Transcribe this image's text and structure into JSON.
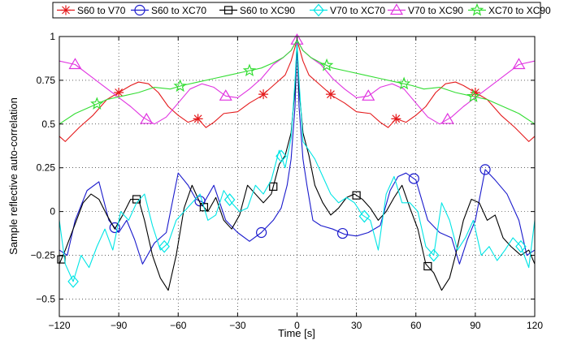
{
  "chart_data": {
    "type": "line",
    "title": "",
    "xlabel": "Time [s]",
    "ylabel": "Sample reflective auto-correlation",
    "xlim": [
      -120,
      120
    ],
    "ylim": [
      -0.6,
      1.0
    ],
    "grid": true,
    "legend_position": "top",
    "xticks": [
      -120,
      -90,
      -60,
      -30,
      0,
      30,
      60,
      90,
      120
    ],
    "xtick_labels": [
      "−120",
      "−90",
      "−60",
      "−30",
      "0",
      "30",
      "60",
      "90",
      "120"
    ],
    "yticks": [
      -0.5,
      -0.25,
      0,
      0.25,
      0.5,
      0.75,
      1
    ],
    "ytick_labels": [
      "−0.5",
      "−0.25",
      "0",
      "0.25",
      "0.5",
      "0.75",
      "1"
    ],
    "series": [
      {
        "name": "S60 to V70",
        "color": "#e41a1c",
        "marker": "asterisk",
        "x": [
          -120,
          -117,
          -110,
          -103,
          -96,
          -90,
          -84,
          -80,
          -75,
          -70,
          -65,
          -60,
          -55,
          -50,
          -46,
          -42,
          -37,
          -30,
          -24,
          -18,
          -12,
          -6,
          -3,
          -1,
          0,
          1,
          3,
          6,
          12,
          18,
          24,
          30,
          37,
          42,
          46,
          50,
          55,
          60,
          65,
          70,
          75,
          80,
          84,
          90,
          96,
          103,
          110,
          117,
          120
        ],
        "y": [
          0.43,
          0.4,
          0.48,
          0.55,
          0.64,
          0.68,
          0.72,
          0.74,
          0.73,
          0.68,
          0.6,
          0.55,
          0.51,
          0.53,
          0.48,
          0.51,
          0.56,
          0.57,
          0.62,
          0.66,
          0.72,
          0.78,
          0.86,
          0.94,
          0.98,
          0.94,
          0.86,
          0.78,
          0.72,
          0.66,
          0.62,
          0.57,
          0.56,
          0.51,
          0.48,
          0.53,
          0.51,
          0.55,
          0.6,
          0.68,
          0.73,
          0.74,
          0.72,
          0.68,
          0.64,
          0.55,
          0.48,
          0.4,
          0.43
        ],
        "markers_x": [
          -90,
          -50,
          -17,
          17,
          50,
          90
        ]
      },
      {
        "name": "S60 to XC70",
        "color": "#1a1acc",
        "marker": "circle",
        "x": [
          -120,
          -116,
          -112,
          -106,
          -100,
          -95,
          -90,
          -86,
          -82,
          -78,
          -72,
          -66,
          -60,
          -55,
          -51,
          -47,
          -42,
          -36,
          -30,
          -24,
          -18,
          -12,
          -8,
          -5,
          -3,
          -1,
          0,
          1,
          3,
          5,
          8,
          12,
          18,
          24,
          30,
          36,
          42,
          47,
          51,
          55,
          60,
          66,
          72,
          78,
          82,
          86,
          90,
          95,
          100,
          106,
          112,
          116,
          120
        ],
        "y": [
          -0.22,
          -0.25,
          -0.05,
          0.12,
          0.17,
          -0.05,
          -0.12,
          -0.05,
          -0.16,
          -0.3,
          -0.18,
          -0.12,
          0.22,
          0.15,
          0.07,
          0.05,
          0.15,
          -0.05,
          -0.12,
          -0.17,
          -0.12,
          -0.05,
          0.02,
          0.15,
          0.3,
          0.6,
          0.97,
          0.6,
          0.3,
          0.15,
          -0.05,
          -0.08,
          -0.1,
          -0.13,
          -0.14,
          -0.12,
          -0.08,
          0.12,
          0.2,
          0.22,
          0.18,
          -0.05,
          -0.12,
          -0.15,
          -0.3,
          -0.16,
          -0.05,
          0.24,
          0.18,
          0.1,
          -0.05,
          -0.25,
          -0.22
        ],
        "markers_x": [
          -92,
          -49,
          -18,
          23,
          59,
          95
        ]
      },
      {
        "name": "S60 to XC90",
        "color": "#000000",
        "marker": "square",
        "x": [
          -120,
          -117,
          -113,
          -108,
          -104,
          -100,
          -96,
          -92,
          -88,
          -84,
          -80,
          -77,
          -73,
          -69,
          -65,
          -61,
          -57,
          -53,
          -49,
          -45,
          -41,
          -37,
          -33,
          -29,
          -25,
          -21,
          -17,
          -13,
          -9,
          -6,
          -3,
          -1,
          0,
          1,
          3,
          6,
          9,
          13,
          17,
          21,
          25,
          29,
          33,
          37,
          41,
          45,
          49,
          53,
          57,
          61,
          65,
          69,
          73,
          77,
          80,
          84,
          88,
          92,
          96,
          100,
          104,
          108,
          113,
          117,
          120
        ],
        "y": [
          -0.3,
          -0.22,
          -0.1,
          0.05,
          0.1,
          0.07,
          -0.02,
          -0.1,
          -0.02,
          0.07,
          0.07,
          -0.05,
          -0.25,
          -0.38,
          -0.45,
          -0.25,
          0.02,
          0.15,
          0.05,
          0.0,
          0.08,
          -0.05,
          -0.1,
          -0.02,
          0.15,
          0.1,
          0.05,
          0.1,
          0.27,
          0.32,
          0.45,
          0.7,
          0.97,
          0.7,
          0.45,
          0.32,
          0.15,
          0.05,
          -0.02,
          0.02,
          0.08,
          0.1,
          0.07,
          0.02,
          -0.05,
          0.0,
          0.08,
          0.15,
          0.02,
          -0.1,
          -0.3,
          -0.35,
          -0.45,
          -0.38,
          -0.25,
          -0.05,
          0.07,
          0.05,
          -0.05,
          -0.02,
          -0.15,
          -0.2,
          -0.25,
          -0.22,
          -0.3
        ],
        "markers_x": [
          -119,
          -81,
          -47,
          -12,
          30,
          66
        ]
      },
      {
        "name": "V70 to XC70",
        "color": "#00e5e5",
        "marker": "diamond",
        "x": [
          -120,
          -117,
          -113,
          -109,
          -105,
          -101,
          -97,
          -93,
          -89,
          -85,
          -81,
          -77,
          -73,
          -69,
          -65,
          -61,
          -57,
          -53,
          -49,
          -45,
          -41,
          -37,
          -33,
          -29,
          -25,
          -21,
          -17,
          -13,
          -9,
          -6,
          -3,
          -1,
          0,
          1,
          3,
          6,
          9,
          13,
          17,
          21,
          25,
          29,
          33,
          37,
          41,
          45,
          49,
          53,
          57,
          61,
          65,
          69,
          73,
          77,
          81,
          85,
          89,
          93,
          97,
          101,
          105,
          109,
          113,
          117,
          120
        ],
        "y": [
          -0.05,
          -0.3,
          -0.4,
          -0.25,
          -0.32,
          -0.2,
          -0.1,
          -0.22,
          0.0,
          -0.05,
          0.05,
          0.1,
          -0.08,
          -0.22,
          -0.18,
          -0.05,
          0.0,
          0.05,
          0.1,
          -0.05,
          -0.02,
          0.12,
          0.05,
          0.0,
          0.02,
          0.15,
          0.1,
          0.18,
          0.35,
          0.25,
          0.42,
          0.75,
          0.97,
          0.75,
          0.4,
          0.35,
          0.3,
          0.2,
          0.1,
          0.05,
          0.08,
          0.05,
          -0.02,
          -0.05,
          -0.22,
          0.1,
          0.2,
          0.05,
          0.05,
          0.0,
          -0.2,
          -0.25,
          0.05,
          -0.05,
          -0.22,
          -0.15,
          -0.05,
          -0.25,
          -0.2,
          -0.28,
          -0.22,
          -0.15,
          -0.2,
          -0.32,
          -0.05
        ],
        "markers_x": [
          -113,
          -67,
          -34,
          -8,
          34,
          69,
          113
        ]
      },
      {
        "name": "V70 to XC90",
        "color": "#e033e0",
        "marker": "triangle",
        "x": [
          -120,
          -112,
          -105,
          -98,
          -91,
          -84,
          -78,
          -72,
          -66,
          -60,
          -54,
          -48,
          -42,
          -36,
          -30,
          -24,
          -18,
          -12,
          -7,
          -3,
          -1,
          0,
          1,
          3,
          7,
          12,
          18,
          24,
          30,
          36,
          42,
          48,
          54,
          60,
          66,
          72,
          78,
          84,
          91,
          98,
          105,
          112,
          120
        ],
        "y": [
          0.86,
          0.84,
          0.78,
          0.72,
          0.66,
          0.6,
          0.54,
          0.5,
          0.54,
          0.62,
          0.7,
          0.73,
          0.71,
          0.66,
          0.65,
          0.7,
          0.76,
          0.84,
          0.88,
          0.92,
          0.96,
          0.98,
          0.96,
          0.92,
          0.88,
          0.84,
          0.76,
          0.7,
          0.65,
          0.66,
          0.71,
          0.73,
          0.7,
          0.62,
          0.54,
          0.5,
          0.54,
          0.6,
          0.66,
          0.72,
          0.78,
          0.84,
          0.86
        ],
        "markers_x": [
          -112,
          -76,
          -36,
          0,
          36,
          76,
          112
        ]
      },
      {
        "name": "XC70 to XC90",
        "color": "#33dd33",
        "marker": "pentagram",
        "x": [
          -120,
          -112,
          -104,
          -96,
          -88,
          -80,
          -72,
          -64,
          -58,
          -50,
          -42,
          -34,
          -26,
          -18,
          -12,
          -7,
          -3,
          -1,
          0,
          1,
          3,
          7,
          12,
          18,
          26,
          34,
          42,
          50,
          58,
          64,
          72,
          80,
          88,
          96,
          104,
          112,
          120
        ],
        "y": [
          0.5,
          0.56,
          0.6,
          0.64,
          0.66,
          0.68,
          0.71,
          0.7,
          0.72,
          0.74,
          0.76,
          0.78,
          0.8,
          0.82,
          0.85,
          0.88,
          0.92,
          0.96,
          0.98,
          0.96,
          0.92,
          0.88,
          0.85,
          0.82,
          0.8,
          0.78,
          0.76,
          0.74,
          0.72,
          0.7,
          0.71,
          0.68,
          0.66,
          0.64,
          0.6,
          0.56,
          0.5
        ],
        "markers_x": [
          -101,
          -59,
          -24,
          15,
          54,
          89
        ]
      }
    ]
  }
}
